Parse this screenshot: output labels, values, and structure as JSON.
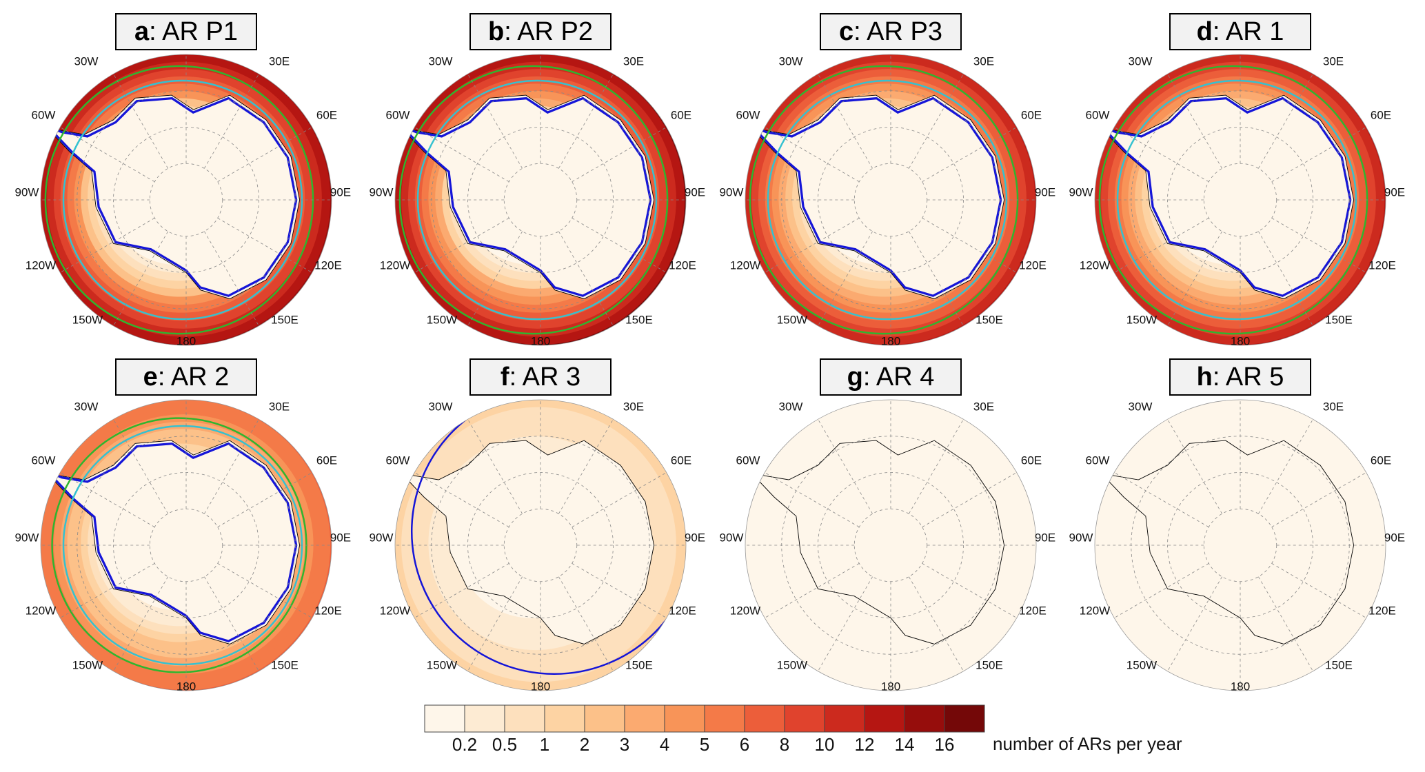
{
  "panels": [
    {
      "letter": "a",
      "title": ": AR P1"
    },
    {
      "letter": "b",
      "title": ": AR P2"
    },
    {
      "letter": "c",
      "title": ": AR P3"
    },
    {
      "letter": "d",
      "title": ": AR 1"
    },
    {
      "letter": "e",
      "title": ": AR 2"
    },
    {
      "letter": "f",
      "title": ": AR 3"
    },
    {
      "letter": "g",
      "title": ": AR 4"
    },
    {
      "letter": "h",
      "title": ": AR 5"
    }
  ],
  "longitude_labels": [
    "30W",
    "30E",
    "60W",
    "60E",
    "90W",
    "90E",
    "120W",
    "120E",
    "150W",
    "150E",
    "180"
  ],
  "colorbar": {
    "levels": [
      0.2,
      0.5,
      1,
      2,
      3,
      4,
      5,
      6,
      8,
      10,
      12,
      14,
      16
    ],
    "colors": [
      "#fef6ea",
      "#fdebd3",
      "#fde0bd",
      "#fdd3a3",
      "#fcc189",
      "#fbaa70",
      "#f89458",
      "#f47a48",
      "#ec5e3a",
      "#e0432d",
      "#cc2a1e",
      "#b51612",
      "#960d0c",
      "#740808"
    ],
    "label": "number of ARs per year"
  }
}
